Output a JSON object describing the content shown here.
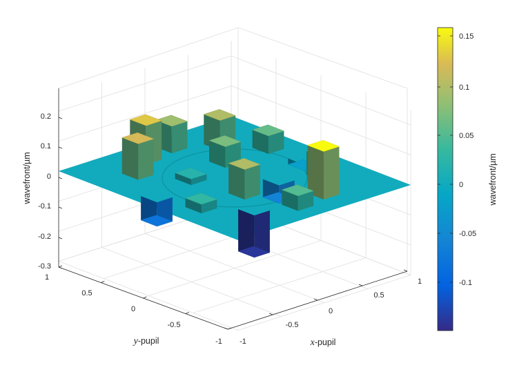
{
  "chart_data": {
    "type": "surface",
    "title": "",
    "xlabel": {
      "var": "x",
      "text": "-pupil"
    },
    "ylabel": {
      "var": "y",
      "text": "-pupil"
    },
    "zlabel": "wavefront/µm",
    "xlim": [
      -1,
      1
    ],
    "ylim": [
      -1,
      1
    ],
    "zlim": [
      -0.3,
      0.25
    ],
    "x_ticks": [
      "-1",
      "-0.5",
      "0",
      "0.5",
      "1"
    ],
    "y_ticks": [
      "1",
      "0.5",
      "0",
      "-0.5",
      "-1"
    ],
    "z_ticks": [
      "0.2",
      "0.1",
      "0",
      "-0.1",
      "-0.2",
      "-0.3"
    ],
    "grid": true,
    "colormap": "parula",
    "colorbar": {
      "label": "wavefront/µm",
      "range": [
        -0.15,
        0.16
      ],
      "ticks": [
        "0.15",
        "0.1",
        "0.05",
        "0",
        "-0.05",
        "-0.1"
      ]
    },
    "surface_description": "piecewise-constant wavefront over a unit-radius pupil: flat zero outside the ring, annular ring of segments with heights between about -0.15 and 0.16",
    "segments": [
      {
        "x": -0.55,
        "y": 0.55,
        "z": 0.12
      },
      {
        "x": -0.25,
        "y": 0.75,
        "z": 0.13
      },
      {
        "x": 0.1,
        "y": 0.8,
        "z": 0.09
      },
      {
        "x": 0.45,
        "y": 0.6,
        "z": 0.1
      },
      {
        "x": 0.7,
        "y": 0.3,
        "z": 0.06
      },
      {
        "x": 0.75,
        "y": -0.05,
        "z": -0.02
      },
      {
        "x": 0.6,
        "y": -0.4,
        "z": 0.08
      },
      {
        "x": 0.3,
        "y": -0.7,
        "z": 0.16
      },
      {
        "x": -0.05,
        "y": -0.75,
        "z": 0.05
      },
      {
        "x": -0.4,
        "y": -0.6,
        "z": -0.14
      },
      {
        "x": -0.7,
        "y": -0.3,
        "z": 0.03
      },
      {
        "x": -0.8,
        "y": 0.1,
        "z": -0.08
      },
      {
        "x": -0.3,
        "y": 0.2,
        "z": 0.02
      },
      {
        "x": 0.2,
        "y": 0.3,
        "z": 0.07
      },
      {
        "x": 0.25,
        "y": -0.25,
        "z": -0.06
      },
      {
        "x": -0.2,
        "y": -0.3,
        "z": 0.1
      }
    ]
  }
}
